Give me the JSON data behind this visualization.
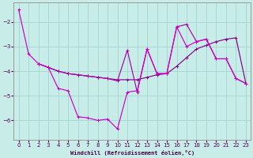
{
  "xlabel": "Windchill (Refroidissement éolien,°C)",
  "background_color": "#c8ece8",
  "grid_color": "#a8d8d4",
  "line_color1": "#cc00cc",
  "line_color2": "#880088",
  "line_color3": "#aa00aa",
  "xlim": [
    -0.5,
    23.5
  ],
  "ylim": [
    -6.8,
    -1.2
  ],
  "yticks": [
    -6,
    -5,
    -4,
    -3,
    -2
  ],
  "xticks": [
    0,
    1,
    2,
    3,
    4,
    5,
    6,
    7,
    8,
    9,
    10,
    11,
    12,
    13,
    14,
    15,
    16,
    17,
    18,
    19,
    20,
    21,
    22,
    23
  ],
  "line1_x": [
    0,
    1,
    2,
    3,
    4,
    5,
    6,
    7,
    8,
    9,
    10,
    11,
    12,
    13,
    14,
    15,
    16,
    17,
    18,
    19,
    20,
    21,
    22,
    23
  ],
  "line1_y": [
    -1.5,
    -3.3,
    -3.7,
    -3.85,
    -4.7,
    -4.8,
    -5.85,
    -5.9,
    -6.0,
    -5.95,
    -6.35,
    -4.85,
    -4.8,
    -3.1,
    -4.1,
    -4.1,
    -2.2,
    -3.0,
    -2.8,
    -2.7,
    -3.5,
    -3.5,
    -4.3,
    -4.5
  ],
  "line2_x": [
    2,
    3,
    4,
    5,
    6,
    7,
    8,
    9,
    10,
    11,
    12,
    13,
    14,
    15,
    16,
    17,
    18,
    19,
    20,
    21,
    22,
    23
  ],
  "line2_y": [
    -3.7,
    -3.85,
    -4.0,
    -4.1,
    -4.15,
    -4.2,
    -4.25,
    -4.3,
    -4.35,
    -4.35,
    -4.35,
    -4.25,
    -4.15,
    -4.1,
    -3.8,
    -3.45,
    -3.1,
    -2.95,
    -2.8,
    -2.7,
    -2.65,
    -4.5
  ],
  "line3_x": [
    2,
    3,
    4,
    5,
    6,
    7,
    8,
    9,
    10,
    11,
    12,
    13,
    14,
    15,
    16,
    17,
    18,
    19,
    20,
    21,
    22,
    23
  ],
  "line3_y": [
    -3.7,
    -3.85,
    -4.0,
    -4.1,
    -4.15,
    -4.2,
    -4.25,
    -4.3,
    -4.4,
    -3.15,
    -4.85,
    -3.1,
    -4.1,
    -4.1,
    -2.2,
    -2.1,
    -2.8,
    -2.7,
    -3.5,
    -3.5,
    -4.3,
    -4.5
  ]
}
